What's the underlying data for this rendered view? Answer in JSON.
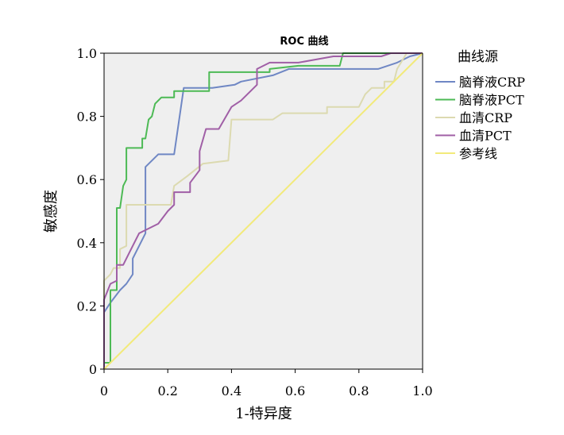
{
  "chart_data": {
    "type": "line",
    "title": "ROC 曲线",
    "xlabel": "1-特异度",
    "ylabel": "敏感度",
    "xlim": [
      0,
      1
    ],
    "ylim": [
      0,
      1
    ],
    "x_ticks": [
      "0",
      "0.2",
      "0.4",
      "0.6",
      "0.8",
      "1.0"
    ],
    "y_ticks": [
      "0",
      "0.2",
      "0.4",
      "0.6",
      "0.8",
      "1.0"
    ],
    "grid": false,
    "background": "#efefef",
    "legend_title": "曲线源",
    "legend_position": "right",
    "series": [
      {
        "name": "脑脊液CRP",
        "color": "#6f87c4",
        "points": [
          [
            0,
            0
          ],
          [
            0,
            0.18
          ],
          [
            0.02,
            0.21
          ],
          [
            0.05,
            0.25
          ],
          [
            0.07,
            0.27
          ],
          [
            0.09,
            0.3
          ],
          [
            0.09,
            0.35
          ],
          [
            0.13,
            0.43
          ],
          [
            0.13,
            0.64
          ],
          [
            0.17,
            0.68
          ],
          [
            0.22,
            0.68
          ],
          [
            0.25,
            0.89
          ],
          [
            0.34,
            0.89
          ],
          [
            0.41,
            0.9
          ],
          [
            0.43,
            0.91
          ],
          [
            0.53,
            0.93
          ],
          [
            0.58,
            0.95
          ],
          [
            0.86,
            0.95
          ],
          [
            0.92,
            0.97
          ],
          [
            0.96,
            0.99
          ],
          [
            1,
            1
          ]
        ]
      },
      {
        "name": "脑脊液PCT",
        "color": "#4dba55",
        "points": [
          [
            0,
            0
          ],
          [
            0,
            0.02
          ],
          [
            0.02,
            0.02
          ],
          [
            0.02,
            0.25
          ],
          [
            0.04,
            0.25
          ],
          [
            0.04,
            0.51
          ],
          [
            0.05,
            0.51
          ],
          [
            0.06,
            0.58
          ],
          [
            0.07,
            0.6
          ],
          [
            0.07,
            0.7
          ],
          [
            0.12,
            0.7
          ],
          [
            0.12,
            0.73
          ],
          [
            0.13,
            0.73
          ],
          [
            0.14,
            0.79
          ],
          [
            0.15,
            0.8
          ],
          [
            0.16,
            0.84
          ],
          [
            0.18,
            0.86
          ],
          [
            0.22,
            0.86
          ],
          [
            0.22,
            0.88
          ],
          [
            0.33,
            0.88
          ],
          [
            0.33,
            0.94
          ],
          [
            0.52,
            0.94
          ],
          [
            0.52,
            0.95
          ],
          [
            0.61,
            0.96
          ],
          [
            0.74,
            0.96
          ],
          [
            0.75,
            1.0
          ],
          [
            1,
            1
          ]
        ]
      },
      {
        "name": "血清CRP",
        "color": "#dcdab0",
        "points": [
          [
            0,
            0
          ],
          [
            0,
            0.28
          ],
          [
            0.02,
            0.3
          ],
          [
            0.03,
            0.32
          ],
          [
            0.05,
            0.32
          ],
          [
            0.05,
            0.38
          ],
          [
            0.07,
            0.39
          ],
          [
            0.07,
            0.52
          ],
          [
            0.21,
            0.52
          ],
          [
            0.22,
            0.58
          ],
          [
            0.26,
            0.61
          ],
          [
            0.31,
            0.65
          ],
          [
            0.39,
            0.66
          ],
          [
            0.4,
            0.79
          ],
          [
            0.53,
            0.79
          ],
          [
            0.56,
            0.81
          ],
          [
            0.7,
            0.81
          ],
          [
            0.7,
            0.83
          ],
          [
            0.8,
            0.83
          ],
          [
            0.82,
            0.87
          ],
          [
            0.84,
            0.89
          ],
          [
            0.88,
            0.89
          ],
          [
            0.88,
            0.91
          ],
          [
            0.91,
            0.91
          ],
          [
            0.92,
            0.95
          ],
          [
            0.95,
            1.0
          ],
          [
            1,
            1
          ]
        ]
      },
      {
        "name": "血清PCT",
        "color": "#a05fa6",
        "points": [
          [
            0,
            0
          ],
          [
            0,
            0.22
          ],
          [
            0.02,
            0.27
          ],
          [
            0.04,
            0.28
          ],
          [
            0.04,
            0.33
          ],
          [
            0.06,
            0.33
          ],
          [
            0.08,
            0.37
          ],
          [
            0.1,
            0.41
          ],
          [
            0.11,
            0.43
          ],
          [
            0.13,
            0.44
          ],
          [
            0.17,
            0.46
          ],
          [
            0.2,
            0.5
          ],
          [
            0.22,
            0.52
          ],
          [
            0.22,
            0.56
          ],
          [
            0.27,
            0.56
          ],
          [
            0.27,
            0.59
          ],
          [
            0.3,
            0.63
          ],
          [
            0.3,
            0.69
          ],
          [
            0.32,
            0.76
          ],
          [
            0.36,
            0.76
          ],
          [
            0.4,
            0.83
          ],
          [
            0.43,
            0.85
          ],
          [
            0.48,
            0.9
          ],
          [
            0.48,
            0.95
          ],
          [
            0.52,
            0.97
          ],
          [
            0.61,
            0.97
          ],
          [
            0.72,
            0.99
          ],
          [
            0.87,
            0.99
          ],
          [
            0.9,
            1.0
          ],
          [
            1,
            1
          ]
        ]
      },
      {
        "name": "参考线",
        "color": "#f2ea7a",
        "points": [
          [
            0,
            0
          ],
          [
            1,
            1
          ]
        ]
      }
    ]
  }
}
